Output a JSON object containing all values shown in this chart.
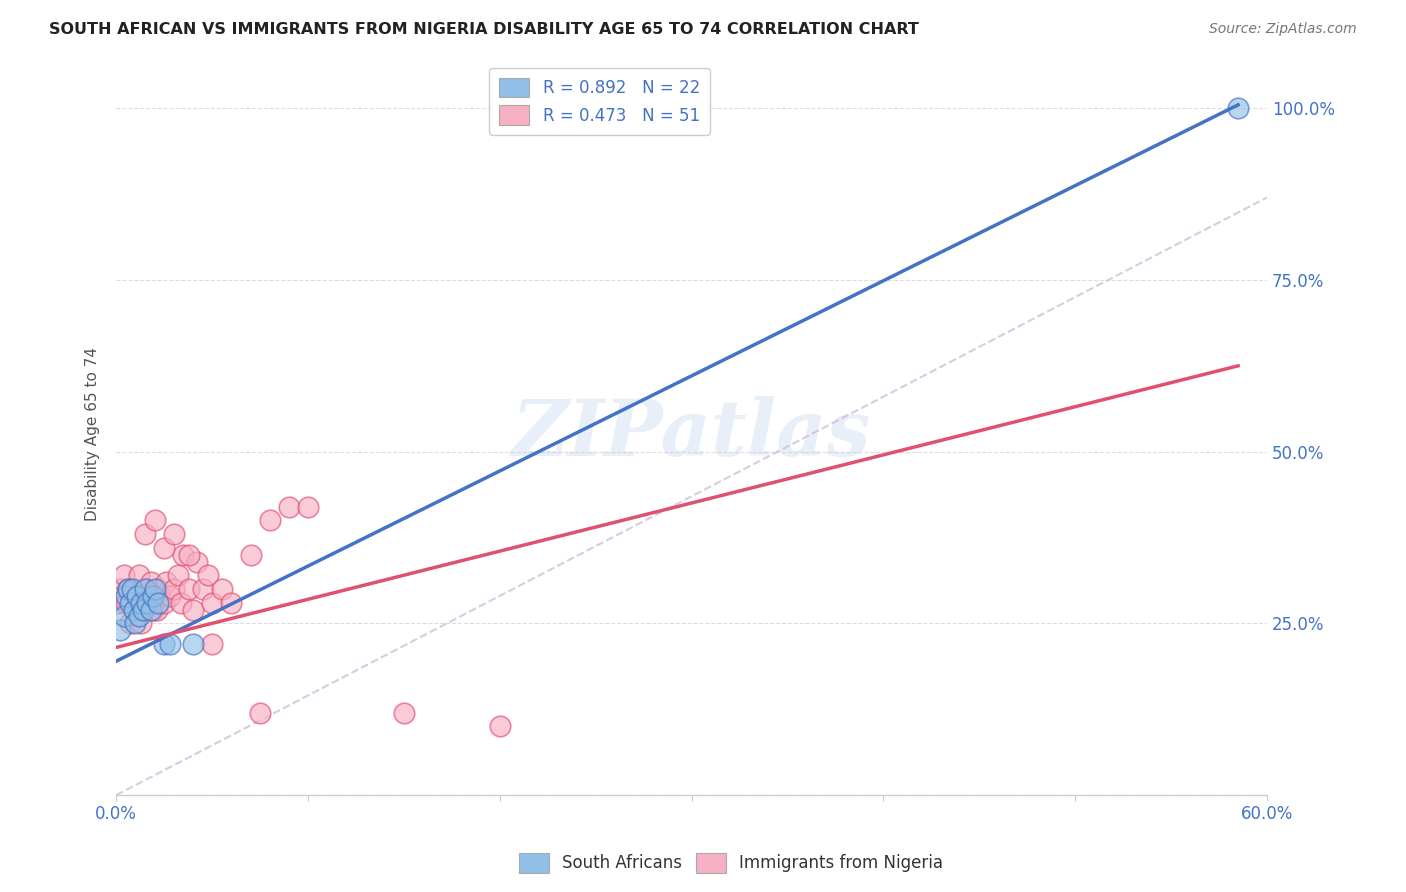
{
  "title": "SOUTH AFRICAN VS IMMIGRANTS FROM NIGERIA DISABILITY AGE 65 TO 74 CORRELATION CHART",
  "source": "Source: ZipAtlas.com",
  "ylabel": "Disability Age 65 to 74",
  "xlim": [
    0.0,
    0.6
  ],
  "ylim": [
    0.0,
    1.05
  ],
  "xtick_vals": [
    0.0,
    0.1,
    0.2,
    0.3,
    0.4,
    0.5,
    0.6
  ],
  "xtick_labels": [
    "0.0%",
    "",
    "",
    "",
    "",
    "",
    "60.0%"
  ],
  "yticks_right": [
    0.0,
    0.25,
    0.5,
    0.75,
    1.0
  ],
  "ytick_labels_right": [
    "",
    "25.0%",
    "50.0%",
    "75.0%",
    "100.0%"
  ],
  "watermark": "ZIPatlas",
  "legend_r1": "R = 0.892",
  "legend_n1": "N = 22",
  "legend_r2": "R = 0.473",
  "legend_n2": "N = 51",
  "color_blue": "#92c0e8",
  "color_pink": "#f7b0c4",
  "color_blue_line": "#4472c4",
  "color_pink_line": "#e05070",
  "color_dashed": "#d0b8d8",
  "color_title": "#222222",
  "color_source": "#777777",
  "color_axis_blue": "#4472c4",
  "background_color": "#ffffff",
  "grid_color": "#dddddd",
  "blue_line_x": [
    0.0,
    0.585
  ],
  "blue_line_y": [
    0.195,
    1.005
  ],
  "pink_line_x": [
    0.0,
    0.585
  ],
  "pink_line_y": [
    0.215,
    0.625
  ],
  "dashed_line_x": [
    0.0,
    0.6
  ],
  "dashed_line_y": [
    0.0,
    0.87
  ],
  "south_african_x": [
    0.002,
    0.004,
    0.005,
    0.006,
    0.007,
    0.008,
    0.009,
    0.01,
    0.011,
    0.012,
    0.013,
    0.014,
    0.015,
    0.016,
    0.018,
    0.019,
    0.02,
    0.022,
    0.025,
    0.028,
    0.04,
    0.585
  ],
  "south_african_y": [
    0.24,
    0.26,
    0.29,
    0.3,
    0.28,
    0.3,
    0.27,
    0.25,
    0.29,
    0.26,
    0.28,
    0.27,
    0.3,
    0.28,
    0.27,
    0.29,
    0.3,
    0.28,
    0.22,
    0.22,
    0.22,
    1.0
  ],
  "nigeria_x": [
    0.001,
    0.002,
    0.003,
    0.004,
    0.005,
    0.006,
    0.007,
    0.008,
    0.009,
    0.01,
    0.011,
    0.012,
    0.013,
    0.014,
    0.015,
    0.016,
    0.017,
    0.018,
    0.019,
    0.02,
    0.021,
    0.022,
    0.023,
    0.025,
    0.026,
    0.028,
    0.03,
    0.032,
    0.034,
    0.035,
    0.038,
    0.04,
    0.042,
    0.045,
    0.048,
    0.05,
    0.055,
    0.06,
    0.07,
    0.08,
    0.09,
    0.1,
    0.015,
    0.02,
    0.025,
    0.03,
    0.038,
    0.05,
    0.075,
    0.15,
    0.2
  ],
  "nigeria_y": [
    0.28,
    0.3,
    0.29,
    0.32,
    0.28,
    0.3,
    0.25,
    0.28,
    0.27,
    0.3,
    0.28,
    0.32,
    0.25,
    0.28,
    0.27,
    0.3,
    0.29,
    0.31,
    0.27,
    0.29,
    0.27,
    0.3,
    0.29,
    0.28,
    0.31,
    0.29,
    0.3,
    0.32,
    0.28,
    0.35,
    0.3,
    0.27,
    0.34,
    0.3,
    0.32,
    0.28,
    0.3,
    0.28,
    0.35,
    0.4,
    0.42,
    0.42,
    0.38,
    0.4,
    0.36,
    0.38,
    0.35,
    0.22,
    0.12,
    0.12,
    0.1
  ]
}
